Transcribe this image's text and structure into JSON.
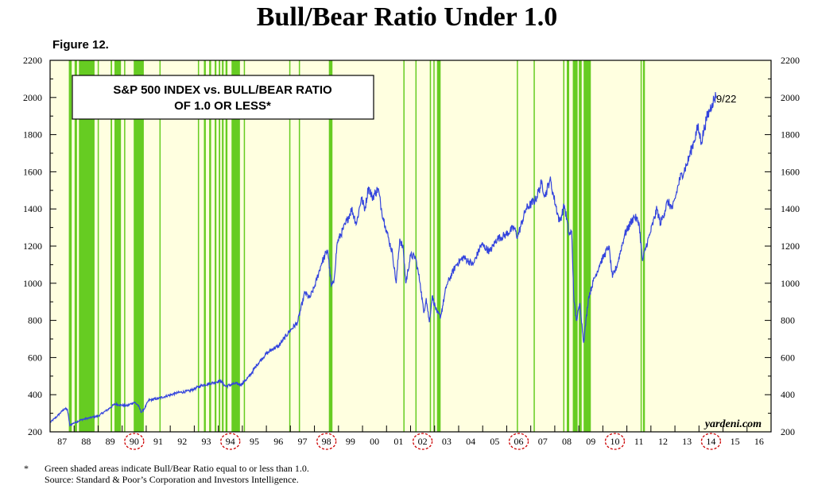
{
  "title": "Bull/Bear Ratio Under 1.0",
  "figure_label": "Figure 12.",
  "legend_box_lines": [
    "S&P 500 INDEX vs. BULL/BEAR RATIO",
    "OF 1.0 OR LESS*"
  ],
  "watermark": "yardeni.com",
  "last_label": "9/22",
  "footnote_star": "*",
  "footnote_line1": "Green shaded areas indicate Bull/Bear Ratio equal to or less than 1.0.",
  "footnote_line2": "Source: Standard & Poor’s Corporation and Investors Intelligence.",
  "colors": {
    "background": "#ffffe0",
    "shade": "#66cc22",
    "line": "#3344dd",
    "circle": "#cc0000"
  },
  "chart_data": {
    "type": "line",
    "x_tick_labels": [
      "87",
      "88",
      "89",
      "90",
      "91",
      "92",
      "93",
      "94",
      "95",
      "96",
      "97",
      "98",
      "99",
      "00",
      "01",
      "02",
      "03",
      "04",
      "05",
      "06",
      "07",
      "08",
      "09",
      "10",
      "11",
      "12",
      "13",
      "14",
      "15",
      "16"
    ],
    "circled_years": [
      "90",
      "94",
      "98",
      "02",
      "06",
      "10",
      "14"
    ],
    "xlim": [
      1987.0,
      2017.0
    ],
    "ylim": [
      200,
      2200
    ],
    "y_ticks": [
      200,
      400,
      600,
      800,
      1000,
      1200,
      1400,
      1600,
      1800,
      2000,
      2200
    ],
    "grid": false,
    "series": [
      {
        "points": [
          [
            1987.0,
            250
          ],
          [
            1987.3,
            285
          ],
          [
            1987.6,
            325
          ],
          [
            1987.72,
            320
          ],
          [
            1987.82,
            235
          ],
          [
            1987.95,
            245
          ],
          [
            1988.3,
            265
          ],
          [
            1988.8,
            280
          ],
          [
            1989.0,
            285
          ],
          [
            1989.4,
            320
          ],
          [
            1989.7,
            350
          ],
          [
            1989.9,
            345
          ],
          [
            1990.2,
            340
          ],
          [
            1990.5,
            360
          ],
          [
            1990.65,
            345
          ],
          [
            1990.8,
            305
          ],
          [
            1990.95,
            330
          ],
          [
            1991.1,
            370
          ],
          [
            1991.5,
            380
          ],
          [
            1991.9,
            395
          ],
          [
            1992.3,
            410
          ],
          [
            1992.8,
            420
          ],
          [
            1993.3,
            450
          ],
          [
            1993.8,
            465
          ],
          [
            1994.1,
            475
          ],
          [
            1994.3,
            445
          ],
          [
            1994.7,
            460
          ],
          [
            1994.95,
            455
          ],
          [
            1995.3,
            500
          ],
          [
            1995.6,
            560
          ],
          [
            1995.95,
            615
          ],
          [
            1996.3,
            650
          ],
          [
            1996.5,
            660
          ],
          [
            1996.95,
            740
          ],
          [
            1997.3,
            790
          ],
          [
            1997.6,
            950
          ],
          [
            1997.8,
            920
          ],
          [
            1998.0,
            980
          ],
          [
            1998.3,
            1110
          ],
          [
            1998.55,
            1180
          ],
          [
            1998.7,
            985
          ],
          [
            1998.8,
            1000
          ],
          [
            1998.95,
            1220
          ],
          [
            1999.3,
            1320
          ],
          [
            1999.55,
            1400
          ],
          [
            1999.75,
            1320
          ],
          [
            1999.95,
            1460
          ],
          [
            2000.1,
            1400
          ],
          [
            2000.25,
            1520
          ],
          [
            2000.4,
            1460
          ],
          [
            2000.65,
            1510
          ],
          [
            2000.8,
            1390
          ],
          [
            2000.95,
            1310
          ],
          [
            2001.1,
            1230
          ],
          [
            2001.25,
            1160
          ],
          [
            2001.4,
            1000
          ],
          [
            2001.55,
            1240
          ],
          [
            2001.7,
            1180
          ],
          [
            2001.8,
            1000
          ],
          [
            2002.0,
            1150
          ],
          [
            2002.2,
            1140
          ],
          [
            2002.4,
            1000
          ],
          [
            2002.55,
            840
          ],
          [
            2002.65,
            920
          ],
          [
            2002.78,
            790
          ],
          [
            2002.9,
            930
          ],
          [
            2003.1,
            840
          ],
          [
            2003.25,
            820
          ],
          [
            2003.5,
            990
          ],
          [
            2003.9,
            1100
          ],
          [
            2004.2,
            1140
          ],
          [
            2004.6,
            1100
          ],
          [
            2004.95,
            1210
          ],
          [
            2005.3,
            1170
          ],
          [
            2005.6,
            1240
          ],
          [
            2005.95,
            1260
          ],
          [
            2006.3,
            1300
          ],
          [
            2006.45,
            1250
          ],
          [
            2006.8,
            1400
          ],
          [
            2007.2,
            1450
          ],
          [
            2007.45,
            1540
          ],
          [
            2007.6,
            1470
          ],
          [
            2007.8,
            1560
          ],
          [
            2007.95,
            1470
          ],
          [
            2008.2,
            1330
          ],
          [
            2008.4,
            1420
          ],
          [
            2008.6,
            1260
          ],
          [
            2008.7,
            1280
          ],
          [
            2008.8,
            900
          ],
          [
            2008.9,
            800
          ],
          [
            2009.05,
            890
          ],
          [
            2009.2,
            680
          ],
          [
            2009.4,
            920
          ],
          [
            2009.6,
            1010
          ],
          [
            2009.9,
            1110
          ],
          [
            2010.25,
            1200
          ],
          [
            2010.4,
            1030
          ],
          [
            2010.6,
            1100
          ],
          [
            2010.9,
            1260
          ],
          [
            2011.3,
            1360
          ],
          [
            2011.5,
            1330
          ],
          [
            2011.65,
            1120
          ],
          [
            2011.8,
            1200
          ],
          [
            2011.95,
            1260
          ],
          [
            2012.25,
            1400
          ],
          [
            2012.4,
            1320
          ],
          [
            2012.7,
            1440
          ],
          [
            2012.9,
            1400
          ],
          [
            2013.2,
            1560
          ],
          [
            2013.5,
            1640
          ],
          [
            2013.8,
            1770
          ],
          [
            2013.95,
            1840
          ],
          [
            2014.1,
            1760
          ],
          [
            2014.3,
            1880
          ],
          [
            2014.55,
            1970
          ],
          [
            2014.72,
            2010
          ]
        ]
      }
    ],
    "shaded_periods": [
      [
        1987.78,
        1987.9
      ],
      [
        1988.02,
        1988.12
      ],
      [
        1988.2,
        1988.85
      ],
      [
        1988.98,
        1989.03
      ],
      [
        1989.52,
        1989.58
      ],
      [
        1989.68,
        1989.95
      ],
      [
        1990.08,
        1990.13
      ],
      [
        1990.48,
        1990.9
      ],
      [
        1991.55,
        1991.6
      ],
      [
        1993.15,
        1993.2
      ],
      [
        1993.4,
        1993.48
      ],
      [
        1993.62,
        1993.7
      ],
      [
        1993.85,
        1993.92
      ],
      [
        1994.02,
        1994.08
      ],
      [
        1994.15,
        1994.22
      ],
      [
        1994.3,
        1994.38
      ],
      [
        1994.55,
        1994.9
      ],
      [
        1995.06,
        1995.1
      ],
      [
        1996.95,
        1997.0
      ],
      [
        1997.35,
        1997.4
      ],
      [
        1998.6,
        1998.75
      ],
      [
        2001.7,
        2001.73
      ],
      [
        2002.2,
        2002.24
      ],
      [
        2002.8,
        2002.85
      ],
      [
        2002.95,
        2003.0
      ],
      [
        2003.1,
        2003.25
      ],
      [
        2006.42,
        2006.45
      ],
      [
        2007.12,
        2007.15
      ],
      [
        2008.35,
        2008.4
      ],
      [
        2008.5,
        2008.6
      ],
      [
        2008.75,
        2008.95
      ],
      [
        2009.0,
        2009.12
      ],
      [
        2009.2,
        2009.5
      ],
      [
        2011.57,
        2011.6
      ],
      [
        2011.67,
        2011.75
      ]
    ]
  }
}
